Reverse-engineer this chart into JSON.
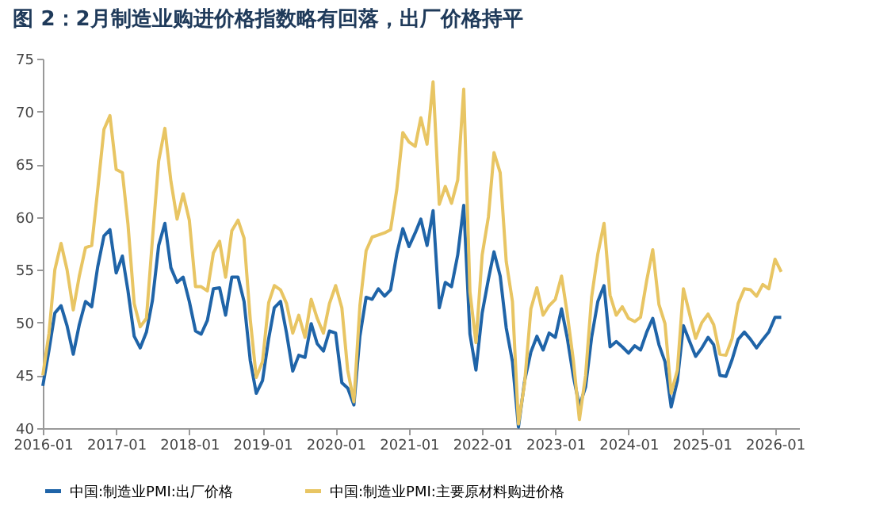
{
  "chart_data": {
    "type": "line",
    "title": "图 2：2月制造业购进价格指数略有回落，出厂价格持平",
    "x": [
      "2016-01",
      "2016-02",
      "2016-03",
      "2016-04",
      "2016-05",
      "2016-06",
      "2016-07",
      "2016-08",
      "2016-09",
      "2016-10",
      "2016-11",
      "2016-12",
      "2017-01",
      "2017-02",
      "2017-03",
      "2017-04",
      "2017-05",
      "2017-06",
      "2017-07",
      "2017-08",
      "2017-09",
      "2017-10",
      "2017-11",
      "2017-12",
      "2018-01",
      "2018-02",
      "2018-03",
      "2018-04",
      "2018-05",
      "2018-06",
      "2018-07",
      "2018-08",
      "2018-09",
      "2018-10",
      "2018-11",
      "2018-12",
      "2019-01",
      "2019-02",
      "2019-03",
      "2019-04",
      "2019-05",
      "2019-06",
      "2019-07",
      "2019-08",
      "2019-09",
      "2019-10",
      "2019-11",
      "2019-12",
      "2020-01",
      "2020-02",
      "2020-03",
      "2020-04",
      "2020-05",
      "2020-06",
      "2020-07",
      "2020-08",
      "2020-09",
      "2020-10",
      "2020-11",
      "2020-12",
      "2021-01",
      "2021-02",
      "2021-03",
      "2021-04",
      "2021-05",
      "2021-06",
      "2021-07",
      "2021-08",
      "2021-09",
      "2021-10",
      "2021-11",
      "2021-12",
      "2022-01",
      "2022-02",
      "2022-03",
      "2022-04",
      "2022-05",
      "2022-06",
      "2022-07",
      "2022-08",
      "2022-09",
      "2022-10",
      "2022-11",
      "2022-12",
      "2023-01",
      "2023-02",
      "2023-03",
      "2023-04",
      "2023-05",
      "2023-06",
      "2023-07",
      "2023-08",
      "2023-09",
      "2023-10",
      "2023-11",
      "2023-12",
      "2024-01",
      "2024-02",
      "2024-03",
      "2024-04",
      "2024-05",
      "2024-06",
      "2024-07",
      "2024-08",
      "2024-09",
      "2024-10",
      "2024-11",
      "2024-12",
      "2025-01",
      "2025-02",
      "2025-03",
      "2025-04",
      "2025-05",
      "2025-06",
      "2025-07",
      "2025-08",
      "2025-09",
      "2025-10",
      "2025-11",
      "2025-12",
      "2026-01",
      "2026-02"
    ],
    "series": [
      {
        "name": "中国:制造业PMI:出厂价格",
        "color": "#1f64a8",
        "values": [
          44.0,
          47.4,
          50.9,
          51.6,
          49.7,
          47.0,
          49.8,
          52.0,
          51.5,
          55.3,
          58.2,
          58.8,
          54.7,
          56.3,
          53.0,
          48.7,
          47.6,
          49.1,
          52.1,
          57.3,
          59.4,
          55.2,
          53.8,
          54.3,
          52.0,
          49.2,
          48.9,
          50.2,
          53.2,
          53.3,
          50.7,
          54.3,
          54.3,
          52.0,
          46.4,
          43.3,
          44.5,
          48.5,
          51.4,
          52.0,
          49.0,
          45.4,
          46.9,
          46.7,
          49.9,
          48.0,
          47.3,
          49.2,
          49.0,
          44.3,
          43.8,
          42.2,
          48.7,
          52.4,
          52.2,
          53.2,
          52.5,
          53.1,
          56.5,
          58.9,
          57.2,
          58.5,
          59.8,
          57.3,
          60.6,
          51.4,
          53.8,
          53.4,
          56.4,
          61.1,
          48.9,
          45.5,
          50.9,
          54.1,
          56.7,
          54.4,
          49.5,
          46.3,
          40.1,
          44.5,
          47.2,
          48.7,
          47.4,
          49.0,
          48.6,
          51.3,
          48.6,
          44.9,
          42.1,
          43.9,
          48.6,
          52.0,
          53.5,
          47.7,
          48.2,
          47.7,
          47.1,
          47.8,
          47.4,
          49.1,
          50.4,
          47.9,
          46.3,
          42.0,
          44.5,
          49.7,
          48.2,
          46.8,
          47.6,
          48.6,
          47.9,
          45.0,
          44.9,
          46.5,
          48.4,
          49.1,
          48.4,
          47.6,
          48.4,
          49.1,
          50.5,
          50.5
        ]
      },
      {
        "name": "中国:制造业PMI:主要原材料购进价格",
        "color": "#e8c563",
        "values": [
          45.0,
          49.0,
          55.0,
          57.5,
          55.0,
          51.2,
          54.4,
          57.1,
          57.3,
          62.6,
          68.3,
          69.6,
          64.5,
          64.2,
          59.3,
          51.8,
          49.6,
          50.4,
          57.9,
          65.3,
          68.4,
          63.4,
          59.8,
          62.2,
          59.7,
          53.4,
          53.4,
          53.0,
          56.6,
          57.7,
          54.3,
          58.7,
          59.7,
          58.0,
          50.3,
          44.8,
          46.3,
          51.9,
          53.5,
          53.1,
          51.8,
          49.0,
          50.7,
          48.6,
          52.2,
          50.4,
          49.0,
          51.8,
          53.5,
          51.4,
          45.5,
          42.5,
          51.6,
          56.8,
          58.1,
          58.3,
          58.5,
          58.8,
          62.6,
          68.0,
          67.1,
          66.7,
          69.4,
          66.9,
          72.8,
          61.2,
          62.9,
          61.3,
          63.5,
          72.1,
          52.9,
          48.1,
          56.4,
          60.0,
          66.1,
          64.2,
          55.8,
          52.0,
          40.4,
          44.3,
          51.3,
          53.3,
          50.7,
          51.6,
          52.2,
          54.4,
          50.9,
          46.4,
          40.8,
          45.0,
          52.4,
          56.5,
          59.4,
          52.6,
          50.7,
          51.5,
          50.4,
          50.1,
          50.5,
          54.0,
          56.9,
          51.7,
          49.9,
          43.3,
          45.5,
          53.2,
          50.8,
          48.5,
          50.0,
          50.8,
          49.8,
          47.0,
          46.9,
          48.5,
          51.8,
          53.2,
          53.1,
          52.5,
          53.6,
          53.2,
          56.0,
          54.8
        ]
      }
    ],
    "xlim": [
      "2016-01",
      "2026-05"
    ],
    "xticks": [
      "2016-01",
      "2017-01",
      "2018-01",
      "2019-01",
      "2020-01",
      "2021-01",
      "2022-01",
      "2023-01",
      "2024-01",
      "2025-01",
      "2026-01"
    ],
    "ylim": [
      40,
      75
    ],
    "yticks": [
      40,
      45,
      50,
      55,
      60,
      65,
      70,
      75
    ],
    "grid": false,
    "legend": "bottom",
    "marker": "none",
    "line_style": "solid"
  }
}
